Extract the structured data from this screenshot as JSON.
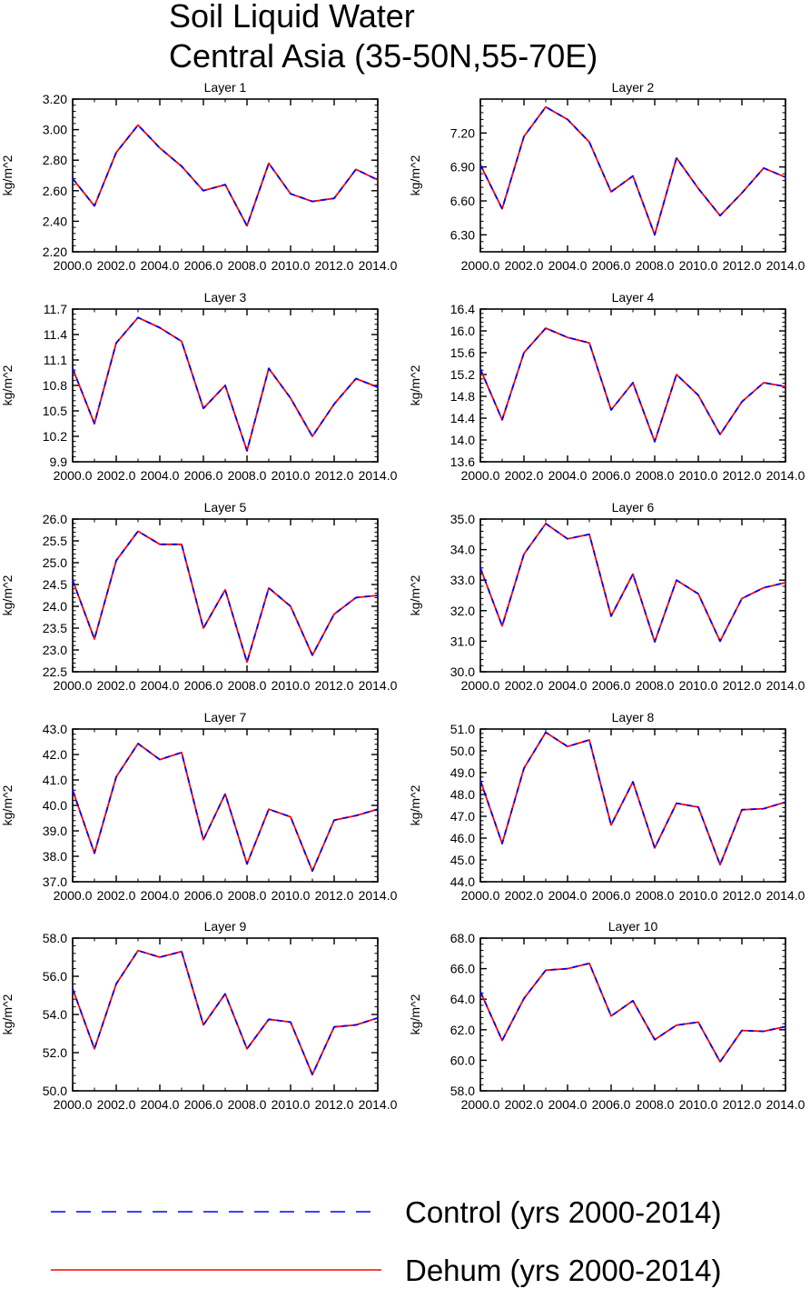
{
  "figure": {
    "title_line1": "Soil Liquid Water",
    "title_line2": "Central Asia (35-50N,55-70E)"
  },
  "legend": [
    {
      "label": "Control (yrs 2000-2014)",
      "color": "#0000ff",
      "style": "dashed"
    },
    {
      "label": "Dehum (yrs 2000-2014)",
      "color": "#ff0000",
      "style": "solid"
    }
  ],
  "chart_data": [
    {
      "type": "line",
      "title": "Layer 1",
      "ylabel": "kg/m^2",
      "xlabel": "",
      "x": [
        2000,
        2001,
        2002,
        2003,
        2004,
        2005,
        2006,
        2007,
        2008,
        2009,
        2010,
        2011,
        2012,
        2013,
        2014
      ],
      "xticks": [
        "2000.0",
        "2002.0",
        "2004.0",
        "2006.0",
        "2008.0",
        "2010.0",
        "2012.0",
        "2014.0"
      ],
      "ylim": [
        2.2,
        3.2
      ],
      "yticks": [
        "2.20",
        "2.40",
        "2.60",
        "2.80",
        "3.00",
        "3.20"
      ],
      "series": [
        {
          "name": "Control (yrs 2000-2014)",
          "values": [
            2.68,
            2.5,
            2.85,
            3.03,
            2.88,
            2.76,
            2.6,
            2.64,
            2.37,
            2.78,
            2.58,
            2.53,
            2.55,
            2.74,
            2.67
          ]
        },
        {
          "name": "Dehum (yrs 2000-2014)",
          "values": [
            2.68,
            2.5,
            2.85,
            3.03,
            2.88,
            2.76,
            2.6,
            2.64,
            2.37,
            2.78,
            2.58,
            2.53,
            2.55,
            2.74,
            2.67
          ]
        }
      ]
    },
    {
      "type": "line",
      "title": "Layer 2",
      "ylabel": "kg/m^2",
      "xlabel": "",
      "x": [
        2000,
        2001,
        2002,
        2003,
        2004,
        2005,
        2006,
        2007,
        2008,
        2009,
        2010,
        2011,
        2012,
        2013,
        2014
      ],
      "xticks": [
        "2000.0",
        "2002.0",
        "2004.0",
        "2006.0",
        "2008.0",
        "2010.0",
        "2012.0",
        "2014.0"
      ],
      "ylim": [
        6.15,
        7.5
      ],
      "yticks": [
        "6.30",
        "6.60",
        "6.90",
        "7.20"
      ],
      "series": [
        {
          "name": "Control (yrs 2000-2014)",
          "values": [
            6.92,
            6.53,
            7.17,
            7.43,
            7.32,
            7.12,
            6.68,
            6.82,
            6.3,
            6.98,
            6.71,
            6.47,
            6.67,
            6.89,
            6.81
          ]
        },
        {
          "name": "Dehum (yrs 2000-2014)",
          "values": [
            6.92,
            6.53,
            7.17,
            7.43,
            7.32,
            7.12,
            6.68,
            6.82,
            6.3,
            6.98,
            6.71,
            6.47,
            6.67,
            6.89,
            6.81
          ]
        }
      ]
    },
    {
      "type": "line",
      "title": "Layer 3",
      "ylabel": "kg/m^2",
      "xlabel": "",
      "x": [
        2000,
        2001,
        2002,
        2003,
        2004,
        2005,
        2006,
        2007,
        2008,
        2009,
        2010,
        2011,
        2012,
        2013,
        2014
      ],
      "xticks": [
        "2000.0",
        "2002.0",
        "2004.0",
        "2006.0",
        "2008.0",
        "2010.0",
        "2012.0",
        "2014.0"
      ],
      "ylim": [
        9.9,
        11.7
      ],
      "yticks": [
        "9.9",
        "10.2",
        "10.5",
        "10.8",
        "11.1",
        "11.4",
        "11.7"
      ],
      "series": [
        {
          "name": "Control (yrs 2000-2014)",
          "values": [
            11.0,
            10.35,
            11.3,
            11.6,
            11.48,
            11.32,
            10.53,
            10.8,
            10.03,
            11.0,
            10.65,
            10.2,
            10.58,
            10.88,
            10.78
          ]
        },
        {
          "name": "Dehum (yrs 2000-2014)",
          "values": [
            11.0,
            10.35,
            11.3,
            11.6,
            11.48,
            11.32,
            10.53,
            10.8,
            10.03,
            11.0,
            10.65,
            10.2,
            10.58,
            10.88,
            10.78
          ]
        }
      ]
    },
    {
      "type": "line",
      "title": "Layer 4",
      "ylabel": "kg/m^2",
      "xlabel": "",
      "x": [
        2000,
        2001,
        2002,
        2003,
        2004,
        2005,
        2006,
        2007,
        2008,
        2009,
        2010,
        2011,
        2012,
        2013,
        2014
      ],
      "xticks": [
        "2000.0",
        "2002.0",
        "2004.0",
        "2006.0",
        "2008.0",
        "2010.0",
        "2012.0",
        "2014.0"
      ],
      "ylim": [
        13.6,
        16.4
      ],
      "yticks": [
        "13.6",
        "14.0",
        "14.4",
        "14.8",
        "15.2",
        "15.6",
        "16.0",
        "16.4"
      ],
      "series": [
        {
          "name": "Control (yrs 2000-2014)",
          "values": [
            15.3,
            14.37,
            15.6,
            16.05,
            15.88,
            15.78,
            14.55,
            15.05,
            13.97,
            15.2,
            14.82,
            14.1,
            14.7,
            15.05,
            14.98
          ]
        },
        {
          "name": "Dehum (yrs 2000-2014)",
          "values": [
            15.3,
            14.37,
            15.6,
            16.05,
            15.88,
            15.78,
            14.55,
            15.05,
            13.97,
            15.2,
            14.82,
            14.1,
            14.7,
            15.05,
            14.98
          ]
        }
      ]
    },
    {
      "type": "line",
      "title": "Layer 5",
      "ylabel": "kg/m^2",
      "xlabel": "",
      "x": [
        2000,
        2001,
        2002,
        2003,
        2004,
        2005,
        2006,
        2007,
        2008,
        2009,
        2010,
        2011,
        2012,
        2013,
        2014
      ],
      "xticks": [
        "2000.0",
        "2002.0",
        "2004.0",
        "2006.0",
        "2008.0",
        "2010.0",
        "2012.0",
        "2014.0"
      ],
      "ylim": [
        22.5,
        26.0
      ],
      "yticks": [
        "22.5",
        "23.0",
        "23.5",
        "24.0",
        "24.5",
        "25.0",
        "25.5",
        "26.0"
      ],
      "series": [
        {
          "name": "Control (yrs 2000-2014)",
          "values": [
            24.6,
            23.25,
            25.05,
            25.72,
            25.42,
            25.42,
            23.5,
            24.38,
            22.72,
            24.42,
            24.0,
            22.88,
            23.82,
            24.2,
            24.25
          ]
        },
        {
          "name": "Dehum (yrs 2000-2014)",
          "values": [
            24.6,
            23.25,
            25.05,
            25.72,
            25.42,
            25.42,
            23.5,
            24.38,
            22.72,
            24.42,
            24.0,
            22.88,
            23.82,
            24.2,
            24.25
          ]
        }
      ]
    },
    {
      "type": "line",
      "title": "Layer 6",
      "ylabel": "kg/m^2",
      "xlabel": "",
      "x": [
        2000,
        2001,
        2002,
        2003,
        2004,
        2005,
        2006,
        2007,
        2008,
        2009,
        2010,
        2011,
        2012,
        2013,
        2014
      ],
      "xticks": [
        "2000.0",
        "2002.0",
        "2004.0",
        "2006.0",
        "2008.0",
        "2010.0",
        "2012.0",
        "2014.0"
      ],
      "ylim": [
        30.0,
        35.0
      ],
      "yticks": [
        "30.0",
        "31.0",
        "32.0",
        "33.0",
        "34.0",
        "35.0"
      ],
      "series": [
        {
          "name": "Control (yrs 2000-2014)",
          "values": [
            33.4,
            31.5,
            33.85,
            34.85,
            34.35,
            34.5,
            31.82,
            33.2,
            30.98,
            33.0,
            32.55,
            31.0,
            32.4,
            32.75,
            32.92
          ]
        },
        {
          "name": "Dehum (yrs 2000-2014)",
          "values": [
            33.4,
            31.5,
            33.85,
            34.85,
            34.35,
            34.5,
            31.82,
            33.2,
            30.98,
            33.0,
            32.55,
            31.0,
            32.4,
            32.75,
            32.92
          ]
        }
      ]
    },
    {
      "type": "line",
      "title": "Layer 7",
      "ylabel": "kg/m^2",
      "xlabel": "",
      "x": [
        2000,
        2001,
        2002,
        2003,
        2004,
        2005,
        2006,
        2007,
        2008,
        2009,
        2010,
        2011,
        2012,
        2013,
        2014
      ],
      "xticks": [
        "2000.0",
        "2002.0",
        "2004.0",
        "2006.0",
        "2008.0",
        "2010.0",
        "2012.0",
        "2014.0"
      ],
      "ylim": [
        37.0,
        43.0
      ],
      "yticks": [
        "37.0",
        "38.0",
        "39.0",
        "40.0",
        "41.0",
        "42.0",
        "43.0"
      ],
      "series": [
        {
          "name": "Control (yrs 2000-2014)",
          "values": [
            40.6,
            38.12,
            41.12,
            42.43,
            41.8,
            42.08,
            38.65,
            40.45,
            37.7,
            39.85,
            39.55,
            37.42,
            39.42,
            39.6,
            39.85
          ]
        },
        {
          "name": "Dehum (yrs 2000-2014)",
          "values": [
            40.6,
            38.12,
            41.12,
            42.43,
            41.8,
            42.08,
            38.65,
            40.45,
            37.7,
            39.85,
            39.55,
            37.42,
            39.42,
            39.6,
            39.85
          ]
        }
      ]
    },
    {
      "type": "line",
      "title": "Layer 8",
      "ylabel": "kg/m^2",
      "xlabel": "",
      "x": [
        2000,
        2001,
        2002,
        2003,
        2004,
        2005,
        2006,
        2007,
        2008,
        2009,
        2010,
        2011,
        2012,
        2013,
        2014
      ],
      "xticks": [
        "2000.0",
        "2002.0",
        "2004.0",
        "2006.0",
        "2008.0",
        "2010.0",
        "2012.0",
        "2014.0"
      ],
      "ylim": [
        44.0,
        51.0
      ],
      "yticks": [
        "44.0",
        "45.0",
        "46.0",
        "47.0",
        "48.0",
        "49.0",
        "50.0",
        "51.0"
      ],
      "series": [
        {
          "name": "Control (yrs 2000-2014)",
          "values": [
            48.65,
            45.75,
            49.2,
            50.85,
            50.2,
            50.5,
            46.6,
            48.58,
            45.55,
            47.6,
            47.42,
            44.78,
            47.3,
            47.35,
            47.65
          ]
        },
        {
          "name": "Dehum (yrs 2000-2014)",
          "values": [
            48.65,
            45.75,
            49.2,
            50.85,
            50.2,
            50.5,
            46.6,
            48.58,
            45.55,
            47.6,
            47.42,
            44.78,
            47.3,
            47.35,
            47.65
          ]
        }
      ]
    },
    {
      "type": "line",
      "title": "Layer 9",
      "ylabel": "kg/m^2",
      "xlabel": "",
      "x": [
        2000,
        2001,
        2002,
        2003,
        2004,
        2005,
        2006,
        2007,
        2008,
        2009,
        2010,
        2011,
        2012,
        2013,
        2014
      ],
      "xticks": [
        "2000.0",
        "2002.0",
        "2004.0",
        "2006.0",
        "2008.0",
        "2010.0",
        "2012.0",
        "2014.0"
      ],
      "ylim": [
        50.0,
        58.0
      ],
      "yticks": [
        "50.0",
        "52.0",
        "54.0",
        "56.0",
        "58.0"
      ],
      "series": [
        {
          "name": "Control (yrs 2000-2014)",
          "values": [
            55.35,
            52.2,
            55.6,
            57.35,
            57.0,
            57.3,
            53.45,
            55.08,
            52.2,
            53.75,
            53.6,
            50.85,
            53.35,
            53.45,
            53.82
          ]
        },
        {
          "name": "Dehum (yrs 2000-2014)",
          "values": [
            55.35,
            52.2,
            55.6,
            57.35,
            57.0,
            57.3,
            53.45,
            55.08,
            52.2,
            53.75,
            53.6,
            50.85,
            53.35,
            53.45,
            53.82
          ]
        }
      ]
    },
    {
      "type": "line",
      "title": "Layer 10",
      "ylabel": "kg/m^2",
      "xlabel": "",
      "x": [
        2000,
        2001,
        2002,
        2003,
        2004,
        2005,
        2006,
        2007,
        2008,
        2009,
        2010,
        2011,
        2012,
        2013,
        2014
      ],
      "xticks": [
        "2000.0",
        "2002.0",
        "2004.0",
        "2006.0",
        "2008.0",
        "2010.0",
        "2012.0",
        "2014.0"
      ],
      "ylim": [
        58.0,
        68.0
      ],
      "yticks": [
        "58.0",
        "60.0",
        "62.0",
        "64.0",
        "66.0",
        "68.0"
      ],
      "series": [
        {
          "name": "Control (yrs 2000-2014)",
          "values": [
            64.5,
            61.3,
            64.05,
            65.9,
            66.0,
            66.35,
            62.9,
            63.9,
            61.35,
            62.3,
            62.5,
            59.9,
            61.95,
            61.9,
            62.2
          ]
        },
        {
          "name": "Dehum (yrs 2000-2014)",
          "values": [
            64.5,
            61.3,
            64.05,
            65.9,
            66.0,
            66.35,
            62.9,
            63.9,
            61.35,
            62.3,
            62.5,
            59.9,
            61.95,
            61.9,
            62.2
          ]
        }
      ]
    }
  ]
}
